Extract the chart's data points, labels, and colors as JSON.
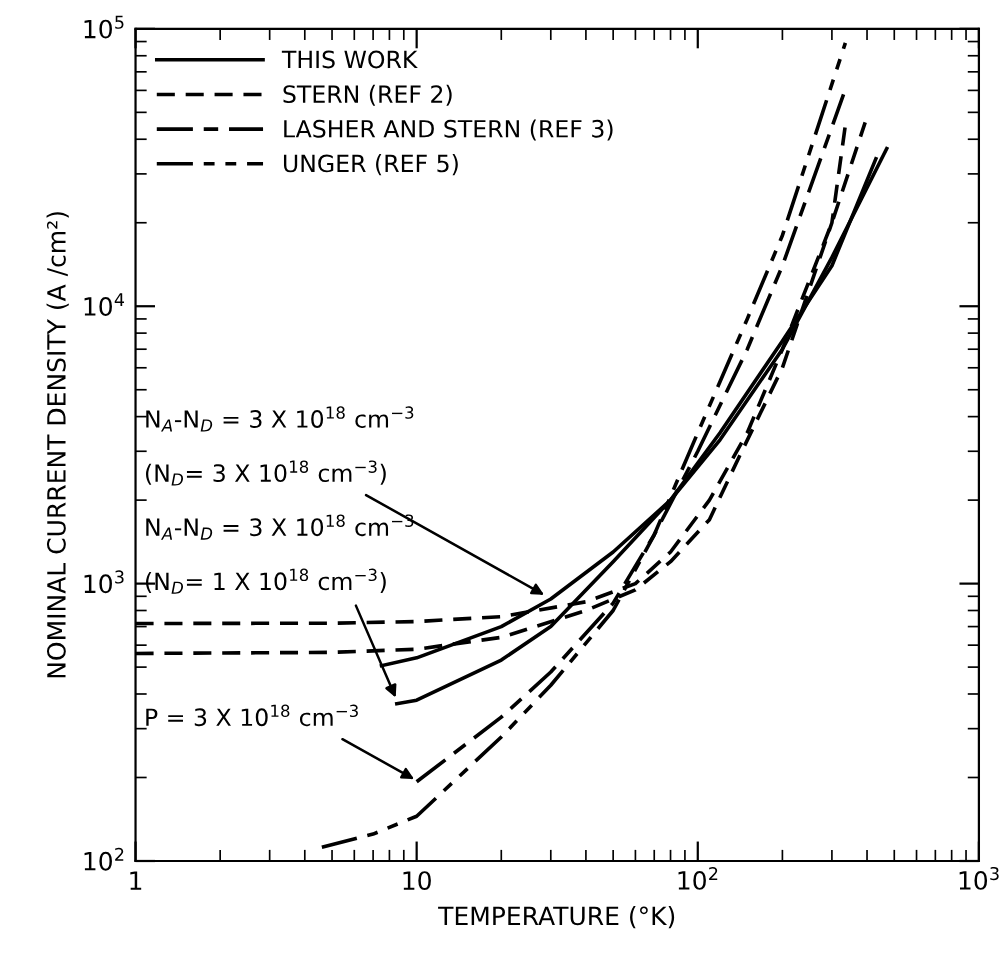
{
  "chart_data": {
    "type": "line",
    "xlabel": "TEMPERATURE (°K)",
    "ylabel": "NOMINAL CURRENT DENSITY (A /cm²)",
    "log": "xy",
    "xlim": [
      1,
      1000
    ],
    "ylim": [
      100,
      100000
    ],
    "xticks": [
      1,
      10,
      {
        "value": 100,
        "label": "10$^{2}$"
      },
      {
        "value": 1000,
        "label": "10$^{3}$"
      }
    ],
    "yticks": [
      {
        "value": 100,
        "label": "10$^{2}$"
      },
      {
        "value": 1000,
        "label": "10$^{3}$"
      },
      {
        "value": 10000,
        "label": "10$^{4}$"
      },
      {
        "value": 100000,
        "label": "10$^{5}$"
      }
    ],
    "grid": false,
    "legend": "top left",
    "marker": "none",
    "series": [
      {
        "name": "THIS WORK",
        "color": "#000000",
        "line_style": "solid",
        "x": [
          7.5,
          10,
          20,
          30,
          50,
          80,
          120,
          200,
          300,
          470
        ],
        "values": [
          506,
          540,
          700,
          880,
          1300,
          2000,
          3300,
          7000,
          15000,
          37000
        ]
      },
      {
        "name": "STERN (REF 2)",
        "color": "#000000",
        "line_style": "dashed",
        "x": [
          1,
          5,
          10,
          20,
          40,
          60,
          80,
          110,
          150,
          200,
          300,
          394
        ],
        "values": [
          718,
          720,
          730,
          760,
          860,
          1000,
          1300,
          2000,
          3500,
          7000,
          20000,
          46000
        ]
      },
      {
        "name": "LASHER AND STERN (REF 3)",
        "color": "#000000",
        "line_style": "longdash",
        "x": [
          10,
          20,
          30,
          50,
          70,
          100,
          150,
          200,
          330
        ],
        "values": [
          193,
          330,
          480,
          850,
          1500,
          3000,
          7000,
          14000,
          58000
        ]
      },
      {
        "name": "UNGER (REF 5)",
        "color": "#000000",
        "line_style": "dashdot",
        "x": [
          4.6,
          7,
          10,
          20,
          30,
          50,
          70,
          100,
          150,
          200,
          335
        ],
        "values": [
          112,
          125,
          145,
          280,
          430,
          800,
          1500,
          3500,
          9000,
          18000,
          89000
        ]
      },
      {
        "color": "#000000",
        "line_style": "solid",
        "x": [
          8.5,
          10,
          20,
          30,
          50,
          80,
          120,
          200,
          300,
          430
        ],
        "values": [
          369,
          380,
          530,
          700,
          1200,
          2000,
          3500,
          7500,
          14000,
          34000
        ]
      },
      {
        "color": "#000000",
        "line_style": "dashed",
        "x": [
          1,
          5,
          10,
          20,
          40,
          60,
          80,
          110,
          140,
          200,
          300,
          335
        ],
        "values": [
          560,
          565,
          580,
          640,
          800,
          950,
          1200,
          1700,
          2850,
          6000,
          20000,
          45000
        ]
      }
    ],
    "annotations": [
      "N$_{A}$-N$_{D}$ = 3 X 10$^{18}$ cm$^{−3}$",
      {
        "text": "(N$_{D}$= 3 X 10$^{18}$ cm$^{−3}$)",
        "x": 29,
        "y": 900
      },
      "N$_{A}$-N$_{D}$ = 3 X 10$^{18}$ cm$^{−3}$",
      {
        "text": "(N$_{D}$= 1 X 10$^{18}$ cm$^{−3}$)",
        "x": 8.5,
        "y": 380
      },
      {
        "text": "P = 3 X 10$^{18}$ cm$^{−3}$",
        "x": 10,
        "y": 195
      }
    ]
  }
}
